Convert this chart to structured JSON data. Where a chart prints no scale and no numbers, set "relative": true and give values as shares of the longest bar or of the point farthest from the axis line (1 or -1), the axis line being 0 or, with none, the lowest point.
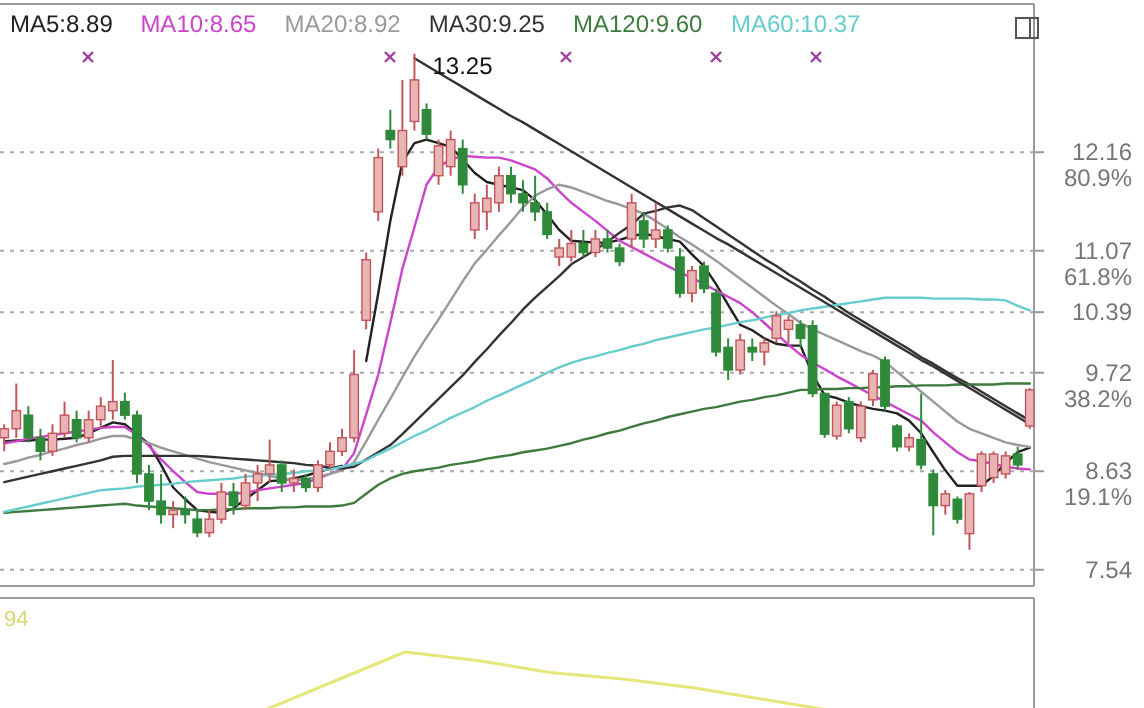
{
  "chart_data": [
    {
      "type": "candlestick",
      "categories": [
        null,
        null,
        null,
        null,
        null,
        null,
        null,
        null,
        null,
        null,
        null,
        null,
        null,
        null,
        null,
        null,
        null,
        null,
        null,
        null,
        null,
        null,
        null,
        null,
        null,
        null,
        null,
        null,
        null,
        null,
        null,
        null,
        null,
        null,
        null,
        null,
        null,
        null,
        null,
        null,
        null,
        null,
        null,
        null,
        null,
        null,
        null,
        null,
        null,
        null,
        null,
        null,
        null,
        null,
        null,
        null,
        null,
        null,
        null,
        null,
        null,
        null,
        null,
        null,
        null,
        null,
        null,
        null,
        null,
        null,
        null,
        null,
        null,
        null,
        null,
        null,
        null,
        null,
        null,
        null,
        null,
        null,
        null,
        null,
        null,
        null
      ],
      "ohlc": [
        [
          9.0,
          9.15,
          8.85,
          9.1
        ],
        [
          9.1,
          9.6,
          9.0,
          9.3
        ],
        [
          9.25,
          9.35,
          8.95,
          9.0
        ],
        [
          9.0,
          9.1,
          8.75,
          8.85
        ],
        [
          8.85,
          9.15,
          8.8,
          9.05
        ],
        [
          9.05,
          9.4,
          9.0,
          9.25
        ],
        [
          9.2,
          9.3,
          8.95,
          9.0
        ],
        [
          9.0,
          9.3,
          8.95,
          9.2
        ],
        [
          9.2,
          9.45,
          9.1,
          9.35
        ],
        [
          9.3,
          9.86,
          9.2,
          9.4
        ],
        [
          9.4,
          9.5,
          9.2,
          9.25
        ],
        [
          9.25,
          9.3,
          8.5,
          8.6
        ],
        [
          8.6,
          8.7,
          8.2,
          8.3
        ],
        [
          8.3,
          8.6,
          8.05,
          8.15
        ],
        [
          8.15,
          8.3,
          8.0,
          8.2
        ],
        [
          8.2,
          8.35,
          8.05,
          8.15
        ],
        [
          8.1,
          8.2,
          7.9,
          7.95
        ],
        [
          7.95,
          8.2,
          7.9,
          8.1
        ],
        [
          8.1,
          8.5,
          8.05,
          8.4
        ],
        [
          8.4,
          8.5,
          8.15,
          8.25
        ],
        [
          8.25,
          8.6,
          8.2,
          8.5
        ],
        [
          8.5,
          8.7,
          8.3,
          8.6
        ],
        [
          8.6,
          8.98,
          8.5,
          8.7
        ],
        [
          8.7,
          8.75,
          8.4,
          8.5
        ],
        [
          8.5,
          8.65,
          8.4,
          8.55
        ],
        [
          8.55,
          8.6,
          8.4,
          8.45
        ],
        [
          8.45,
          8.75,
          8.4,
          8.7
        ],
        [
          8.7,
          8.95,
          8.65,
          8.85
        ],
        [
          8.85,
          9.1,
          8.8,
          9.0
        ],
        [
          9.0,
          9.97,
          8.95,
          9.7
        ],
        [
          10.3,
          11.05,
          10.2,
          10.97
        ],
        [
          11.5,
          12.2,
          11.4,
          12.1
        ],
        [
          12.4,
          12.63,
          12.2,
          12.3
        ],
        [
          12.0,
          12.96,
          11.9,
          12.4
        ],
        [
          12.5,
          13.25,
          12.4,
          12.96
        ],
        [
          12.63,
          12.7,
          12.3,
          12.36
        ],
        [
          11.9,
          12.3,
          11.8,
          12.23
        ],
        [
          12.0,
          12.4,
          11.9,
          12.3
        ],
        [
          12.2,
          12.3,
          11.7,
          11.8
        ],
        [
          11.3,
          11.7,
          11.2,
          11.6
        ],
        [
          11.5,
          11.8,
          11.3,
          11.65
        ],
        [
          11.6,
          12.0,
          11.5,
          11.9
        ],
        [
          11.9,
          12.0,
          11.6,
          11.7
        ],
        [
          11.7,
          11.85,
          11.5,
          11.6
        ],
        [
          11.6,
          11.9,
          11.4,
          11.5
        ],
        [
          11.5,
          11.6,
          11.2,
          11.25
        ],
        [
          11.0,
          11.2,
          10.9,
          11.1
        ],
        [
          11.0,
          11.3,
          10.95,
          11.15
        ],
        [
          11.15,
          11.3,
          11.0,
          11.05
        ],
        [
          11.05,
          11.3,
          11.0,
          11.2
        ],
        [
          11.2,
          11.3,
          11.05,
          11.1
        ],
        [
          11.1,
          11.15,
          10.9,
          10.95
        ],
        [
          11.2,
          11.7,
          11.1,
          11.6
        ],
        [
          11.4,
          11.5,
          11.1,
          11.2
        ],
        [
          11.2,
          11.6,
          11.1,
          11.3
        ],
        [
          11.3,
          11.35,
          11.05,
          11.1
        ],
        [
          11.0,
          11.1,
          10.55,
          10.6
        ],
        [
          10.6,
          10.9,
          10.5,
          10.85
        ],
        [
          10.9,
          10.95,
          10.6,
          10.65
        ],
        [
          10.6,
          10.65,
          9.9,
          9.95
        ],
        [
          10.0,
          10.1,
          9.64,
          9.75
        ],
        [
          9.75,
          10.15,
          9.7,
          10.08
        ],
        [
          10.0,
          10.1,
          9.85,
          9.95
        ],
        [
          9.95,
          10.1,
          9.8,
          10.05
        ],
        [
          10.1,
          10.4,
          10.05,
          10.35
        ],
        [
          10.2,
          10.35,
          10.05,
          10.3
        ],
        [
          10.25,
          10.3,
          10.0,
          10.1
        ],
        [
          10.24,
          10.3,
          9.45,
          9.49
        ],
        [
          9.49,
          9.5,
          9.0,
          9.04
        ],
        [
          9.02,
          9.4,
          8.98,
          9.36
        ],
        [
          9.4,
          9.45,
          9.05,
          9.1
        ],
        [
          9.0,
          9.4,
          8.95,
          9.35
        ],
        [
          9.42,
          9.75,
          9.35,
          9.71
        ],
        [
          9.86,
          9.9,
          9.3,
          9.35
        ],
        [
          9.13,
          9.15,
          8.85,
          8.9
        ],
        [
          8.9,
          9.05,
          8.85,
          9.0
        ],
        [
          8.98,
          9.49,
          8.65,
          8.7
        ],
        [
          8.6,
          8.65,
          7.92,
          8.25
        ],
        [
          8.25,
          8.42,
          8.15,
          8.38
        ],
        [
          8.32,
          8.35,
          8.05,
          8.1
        ],
        [
          7.94,
          8.4,
          7.76,
          8.38
        ],
        [
          8.47,
          8.85,
          8.4,
          8.82
        ],
        [
          8.56,
          8.85,
          8.5,
          8.82
        ],
        [
          8.6,
          8.85,
          8.55,
          8.8
        ],
        [
          8.82,
          8.9,
          8.65,
          8.7
        ],
        [
          9.13,
          9.55,
          9.1,
          9.53
        ]
      ],
      "series": [
        {
          "type": "line",
          "name": "MA5:8.89",
          "color": "#222222",
          "values": [
            8.96,
            8.97,
            8.97,
            8.98,
            8.98,
            8.99,
            9.0,
            9.05,
            9.11,
            9.17,
            9.15,
            9.04,
            8.93,
            8.7,
            8.45,
            8.32,
            8.2,
            8.18,
            8.17,
            8.22,
            8.32,
            8.42,
            8.52,
            8.53,
            8.55,
            8.58,
            8.62,
            8.66,
            8.69,
            null,
            9.85,
            10.6,
            11.4,
            12.05,
            12.26,
            12.3,
            12.26,
            12.22,
            12.08,
            11.93,
            11.83,
            11.8,
            11.77,
            11.74,
            11.63,
            11.47,
            11.3,
            11.18,
            11.17,
            11.16,
            11.16,
            11.19,
            11.23,
            11.26,
            11.23,
            11.2,
            11.17,
            11.03,
            10.9,
            10.7,
            10.47,
            10.25,
            10.19,
            10.1,
            10.04,
            10.02,
            10.02,
            9.7,
            9.47,
            9.44,
            9.39,
            9.35,
            9.32,
            9.3,
            9.27,
            9.19,
            9.05,
            8.84,
            8.64,
            8.47,
            8.47,
            8.47,
            8.58,
            8.72,
            8.84,
            8.89
          ]
        },
        {
          "type": "line",
          "name": "MA10:8.65",
          "color": "#cc44cc",
          "values": [
            8.94,
            8.96,
            8.99,
            9.01,
            9.03,
            9.05,
            9.07,
            9.09,
            9.11,
            9.12,
            9.12,
            9.03,
            8.91,
            8.76,
            8.63,
            8.51,
            8.4,
            8.38,
            8.38,
            8.38,
            8.39,
            8.42,
            8.44,
            8.46,
            8.48,
            8.5,
            8.55,
            8.6,
            8.65,
            8.83,
            9.26,
            9.7,
            10.27,
            10.87,
            11.33,
            11.8,
            12.0,
            12.08,
            12.12,
            12.11,
            12.1,
            12.1,
            12.07,
            12.02,
            11.97,
            11.87,
            11.73,
            11.6,
            11.5,
            11.4,
            11.29,
            11.18,
            11.11,
            11.04,
            10.97,
            10.9,
            10.83,
            10.77,
            10.7,
            10.63,
            10.56,
            10.49,
            10.39,
            10.27,
            10.15,
            10.03,
            9.92,
            9.83,
            9.76,
            9.68,
            9.61,
            9.54,
            9.47,
            9.4,
            9.33,
            9.26,
            9.19,
            9.06,
            8.95,
            8.84,
            8.76,
            8.74,
            8.71,
            8.68,
            8.66,
            8.65
          ]
        },
        {
          "type": "line",
          "name": "MA20:8.92",
          "color": "#999999",
          "values": [
            8.71,
            8.74,
            8.78,
            8.81,
            8.85,
            8.88,
            8.92,
            8.95,
            8.99,
            9.02,
            9.02,
            8.98,
            8.94,
            8.89,
            8.85,
            8.81,
            8.77,
            8.73,
            8.7,
            8.67,
            8.64,
            8.61,
            8.58,
            8.55,
            8.53,
            8.54,
            8.57,
            8.6,
            8.64,
            8.73,
            8.96,
            9.2,
            9.43,
            9.67,
            9.9,
            10.11,
            10.31,
            10.52,
            10.73,
            10.93,
            11.08,
            11.24,
            11.39,
            11.55,
            11.68,
            11.75,
            11.8,
            11.77,
            11.72,
            11.67,
            11.62,
            11.58,
            11.53,
            11.48,
            11.4,
            11.31,
            11.22,
            11.14,
            11.05,
            10.96,
            10.86,
            10.76,
            10.66,
            10.56,
            10.46,
            10.37,
            10.27,
            10.2,
            10.14,
            10.08,
            10.02,
            9.96,
            9.91,
            9.84,
            9.73,
            9.62,
            9.51,
            9.4,
            9.29,
            9.18,
            9.1,
            9.05,
            9.0,
            8.95,
            8.92,
            8.9
          ]
        },
        {
          "type": "line",
          "name": "MA30:9.25",
          "color": "#333333",
          "values": [
            8.51,
            8.54,
            8.57,
            8.6,
            8.63,
            8.66,
            8.69,
            8.72,
            8.75,
            8.79,
            8.8,
            8.8,
            8.8,
            8.8,
            8.8,
            8.8,
            8.8,
            8.79,
            8.78,
            8.77,
            8.76,
            8.75,
            8.74,
            8.73,
            8.72,
            8.7,
            8.69,
            8.67,
            8.66,
            8.68,
            8.76,
            8.84,
            8.92,
            9.04,
            9.17,
            9.3,
            9.43,
            9.56,
            9.69,
            9.84,
            9.98,
            10.13,
            10.27,
            10.42,
            10.55,
            10.67,
            10.79,
            10.92,
            11.0,
            11.08,
            11.17,
            11.27,
            11.36,
            11.48,
            11.51,
            11.55,
            11.57,
            11.52,
            11.43,
            11.34,
            11.25,
            11.16,
            11.07,
            10.98,
            10.9,
            10.81,
            10.73,
            10.64,
            10.56,
            10.47,
            10.38,
            10.3,
            10.22,
            10.14,
            10.06,
            9.98,
            9.89,
            9.82,
            9.74,
            9.66,
            9.59,
            9.51,
            9.43,
            9.35,
            9.27,
            9.19
          ]
        },
        {
          "type": "line",
          "name": "MA120:9.60",
          "color": "#3d7a3d",
          "values": [
            8.17,
            8.18,
            8.19,
            8.2,
            8.21,
            8.22,
            8.23,
            8.24,
            8.25,
            8.26,
            8.27,
            8.25,
            8.24,
            8.23,
            8.22,
            8.21,
            8.2,
            8.2,
            8.21,
            8.21,
            8.22,
            8.22,
            8.22,
            8.23,
            8.23,
            8.24,
            8.24,
            8.24,
            8.25,
            8.28,
            8.38,
            8.48,
            8.55,
            8.6,
            8.63,
            8.65,
            8.67,
            8.7,
            8.72,
            8.74,
            8.77,
            8.79,
            8.81,
            8.84,
            8.86,
            8.88,
            8.91,
            8.94,
            8.98,
            9.01,
            9.05,
            9.08,
            9.12,
            9.16,
            9.19,
            9.23,
            9.26,
            9.29,
            9.32,
            9.34,
            9.37,
            9.4,
            9.42,
            9.45,
            9.47,
            9.5,
            9.53,
            9.53,
            9.54,
            9.54,
            9.55,
            9.55,
            9.56,
            9.56,
            9.57,
            9.57,
            9.58,
            9.58,
            9.58,
            9.59,
            9.59,
            9.59,
            9.59,
            9.6,
            9.6,
            9.6
          ]
        },
        {
          "type": "line",
          "name": "MA60:10.37",
          "color": "#66cccc",
          "values": [
            8.18,
            8.21,
            8.24,
            8.27,
            8.3,
            8.33,
            8.36,
            8.39,
            8.42,
            8.43,
            8.44,
            8.46,
            8.47,
            8.48,
            8.49,
            8.51,
            8.52,
            8.53,
            8.54,
            8.55,
            8.57,
            8.58,
            8.59,
            8.6,
            8.61,
            8.63,
            8.64,
            8.65,
            8.68,
            8.71,
            8.75,
            8.82,
            8.88,
            8.95,
            9.02,
            9.08,
            9.15,
            9.22,
            9.28,
            9.34,
            9.41,
            9.47,
            9.53,
            9.59,
            9.65,
            9.72,
            9.78,
            9.83,
            9.87,
            9.9,
            9.94,
            9.97,
            10.01,
            10.04,
            10.08,
            10.11,
            10.14,
            10.17,
            10.2,
            10.22,
            10.25,
            10.28,
            10.3,
            10.33,
            10.36,
            10.38,
            10.41,
            10.43,
            10.45,
            10.47,
            10.49,
            10.51,
            10.53,
            10.55,
            10.55,
            10.55,
            10.55,
            10.54,
            10.54,
            10.54,
            10.54,
            10.53,
            10.53,
            10.52,
            10.46,
            10.41
          ]
        },
        {
          "type": "line",
          "color": "#333333",
          "values": [
            null,
            null,
            null,
            null,
            null,
            null,
            null,
            null,
            null,
            null,
            null,
            null,
            null,
            null,
            null,
            null,
            null,
            null,
            null,
            null,
            null,
            null,
            null,
            null,
            null,
            null,
            null,
            null,
            null,
            null,
            null,
            null,
            null,
            null,
            13.2,
            13.12,
            13.04,
            12.96,
            12.88,
            12.8,
            12.72,
            12.64,
            12.56,
            12.49,
            12.41,
            12.33,
            12.25,
            12.17,
            12.09,
            12.01,
            11.93,
            11.85,
            11.77,
            11.69,
            11.61,
            11.53,
            11.45,
            11.37,
            11.29,
            11.21,
            11.14,
            11.06,
            10.98,
            10.9,
            10.82,
            10.74,
            10.66,
            10.58,
            10.5,
            10.42,
            10.34,
            10.26,
            10.18,
            10.1,
            10.02,
            9.94,
            9.86,
            9.79,
            9.71,
            9.63,
            9.55,
            9.47,
            9.39,
            9.31,
            9.23,
            9.15
          ]
        }
      ],
      "ylim": [
        7.36,
        13.8
      ],
      "yticks": [
        {
          "value": 12.16,
          "label": "12.16\n80.9%"
        },
        {
          "value": 11.07,
          "label": "11.07\n61.8%"
        },
        {
          "value": 10.39,
          "label": "10.39"
        },
        {
          "value": 9.72,
          "label": "9.72\n38.2%"
        },
        {
          "value": 8.63,
          "label": "8.63\n19.1%"
        },
        {
          "value": 7.54,
          "label": "7.54"
        }
      ],
      "grid": "y",
      "legend": "top left",
      "tick_labels": "y",
      "line_style": "solid",
      "marker": "none",
      "annotations": [
        "13.25"
      ]
    },
    {
      "type": "line",
      "relative": true,
      "categories": [
        null,
        null,
        null,
        null,
        null,
        null,
        null,
        null,
        null
      ],
      "series": [
        {
          "color": "#e6e67a",
          "values": [
            0,
            0.5,
            1,
            0.86,
            0.66,
            0.55,
            0.4,
            0.2,
            0
          ]
        }
      ],
      "annotations": [
        "94"
      ],
      "tick_labels": false
    }
  ]
}
